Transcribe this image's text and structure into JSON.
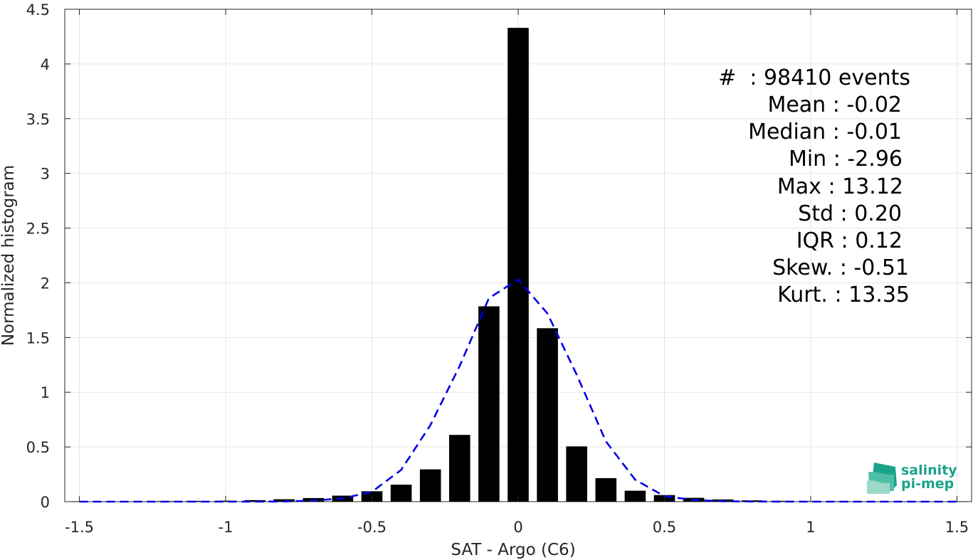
{
  "chart_data": {
    "type": "bar",
    "xlabel": "SAT - Argo (C6)",
    "ylabel": "Normalized histogram",
    "xlim": [
      -1.55,
      1.55
    ],
    "ylim": [
      0,
      4.5
    ],
    "xticks": [
      -1.5,
      -1,
      -0.5,
      0,
      0.5,
      1,
      1.5
    ],
    "xtick_labels": [
      "-1.5",
      "-1",
      "-0.5",
      "0",
      "0.5",
      "1",
      "1.5"
    ],
    "yticks": [
      0,
      0.5,
      1,
      1.5,
      2,
      2.5,
      3,
      3.5,
      4,
      4.5
    ],
    "ytick_labels": [
      "0",
      "0.5",
      "1",
      "1.5",
      "2",
      "2.5",
      "3",
      "3.5",
      "4",
      "4.5"
    ],
    "grid": true,
    "bar_color": "#000000",
    "fit_color": "#0000e6",
    "bins": [
      -1.5,
      -1.4,
      -1.3,
      -1.2,
      -1.1,
      -1.0,
      -0.9,
      -0.8,
      -0.7,
      -0.6,
      -0.5,
      -0.4,
      -0.3,
      -0.2,
      -0.1,
      0.0,
      0.1,
      0.2,
      0.3,
      0.4,
      0.5,
      0.6,
      0.7,
      0.8,
      0.9,
      1.0,
      1.1,
      1.2,
      1.3,
      1.4,
      1.5
    ],
    "values": [
      0.002,
      0.002,
      0.003,
      0.005,
      0.007,
      0.009,
      0.014,
      0.022,
      0.033,
      0.055,
      0.095,
      0.155,
      0.295,
      0.61,
      1.785,
      4.33,
      1.585,
      0.505,
      0.215,
      0.1,
      0.06,
      0.035,
      0.02,
      0.012,
      0.007,
      0.005,
      0.004,
      0.003,
      0.002,
      0.002,
      0.002
    ],
    "series": [
      {
        "type": "line",
        "style": "dashed",
        "x": [
          -1.5,
          -1.0,
          -0.9,
          -0.8,
          -0.7,
          -0.6,
          -0.5,
          -0.4,
          -0.3,
          -0.2,
          -0.1,
          0.0,
          0.1,
          0.2,
          0.3,
          0.4,
          0.5,
          0.6,
          0.7,
          0.8,
          1.0,
          1.5
        ],
        "y": [
          0.0,
          0.0,
          0.0,
          0.002,
          0.01,
          0.03,
          0.09,
          0.29,
          0.7,
          1.24,
          1.86,
          2.03,
          1.72,
          1.16,
          0.55,
          0.2,
          0.05,
          0.015,
          0.004,
          0.001,
          0.0,
          0.0
        ]
      }
    ],
    "annotation": {
      "events": "#  : 98410 events",
      "mean": "Mean : -0.02",
      "median": "Median : -0.01",
      "min": "Min : -2.96",
      "max": "Max : 13.12",
      "std": "Std : 0.20",
      "iqr": "IQR : 0.12",
      "skew": "Skew. : -0.51",
      "kurt": "Kurt. : 13.35"
    }
  },
  "logo": {
    "line1": "salinity",
    "line2": "pi-mep",
    "color": "#1aa38a"
  }
}
